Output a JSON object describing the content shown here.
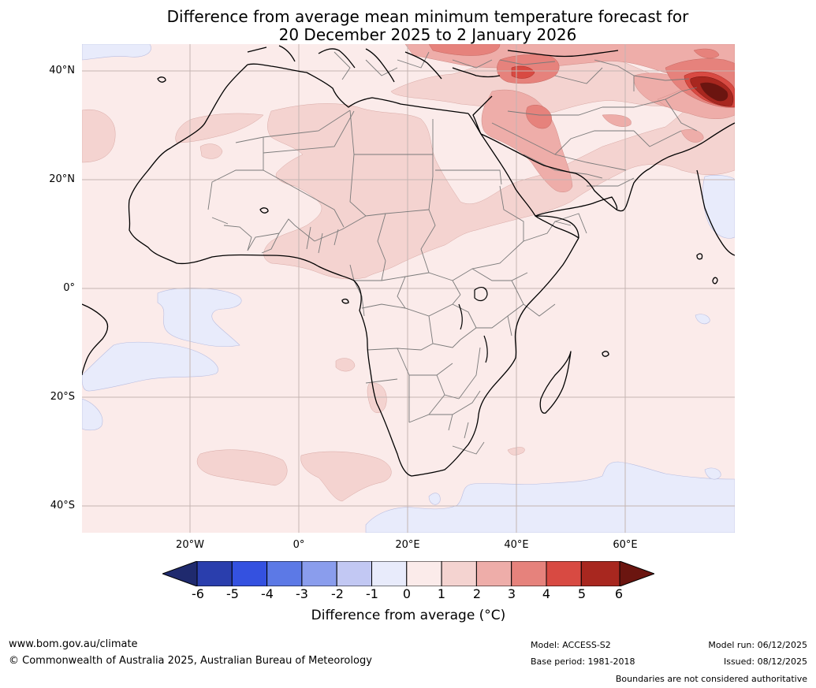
{
  "title": {
    "line1": "Difference from average mean minimum temperature forecast for",
    "line2": "20 December 2025 to 2 January 2026"
  },
  "axes": {
    "lat_labels": [
      "40°N",
      "20°N",
      "0°",
      "20°S",
      "40°S"
    ],
    "lon_labels": [
      "20°W",
      "0°",
      "20°E",
      "40°E",
      "60°E"
    ]
  },
  "legend": {
    "ticks": [
      "-6",
      "-5",
      "-4",
      "-3",
      "-2",
      "-1",
      "0",
      "1",
      "2",
      "3",
      "4",
      "5",
      "6"
    ],
    "label": "Difference from average (°C)",
    "colors": {
      "below_-6": "#1f2a6e",
      "-6_-5": "#2a3ead",
      "-5_-4": "#3451e0",
      "-4_-3": "#5c79e6",
      "-3_-2": "#8a9ded",
      "-2_-1": "#c2c8f3",
      "-1_0": "#e8ebfb",
      "0_1": "#fbebea",
      "1_2": "#f4d3d0",
      "2_3": "#eeada9",
      "3_4": "#e6827c",
      "4_5": "#d84a42",
      "5_6": "#a8271f",
      "above_6": "#6b1510"
    }
  },
  "footer": {
    "website": "www.bom.gov.au/climate",
    "copyright": "© Commonwealth of Australia 2025, Australian Bureau of Meteorology",
    "model": "Model: ACCESS-S2",
    "base_period": "Base period: 1981-2018",
    "model_run": "Model run: 06/12/2025",
    "issued": "Issued: 08/12/2025",
    "disclaimer": "Boundaries are not considered authoritative"
  }
}
